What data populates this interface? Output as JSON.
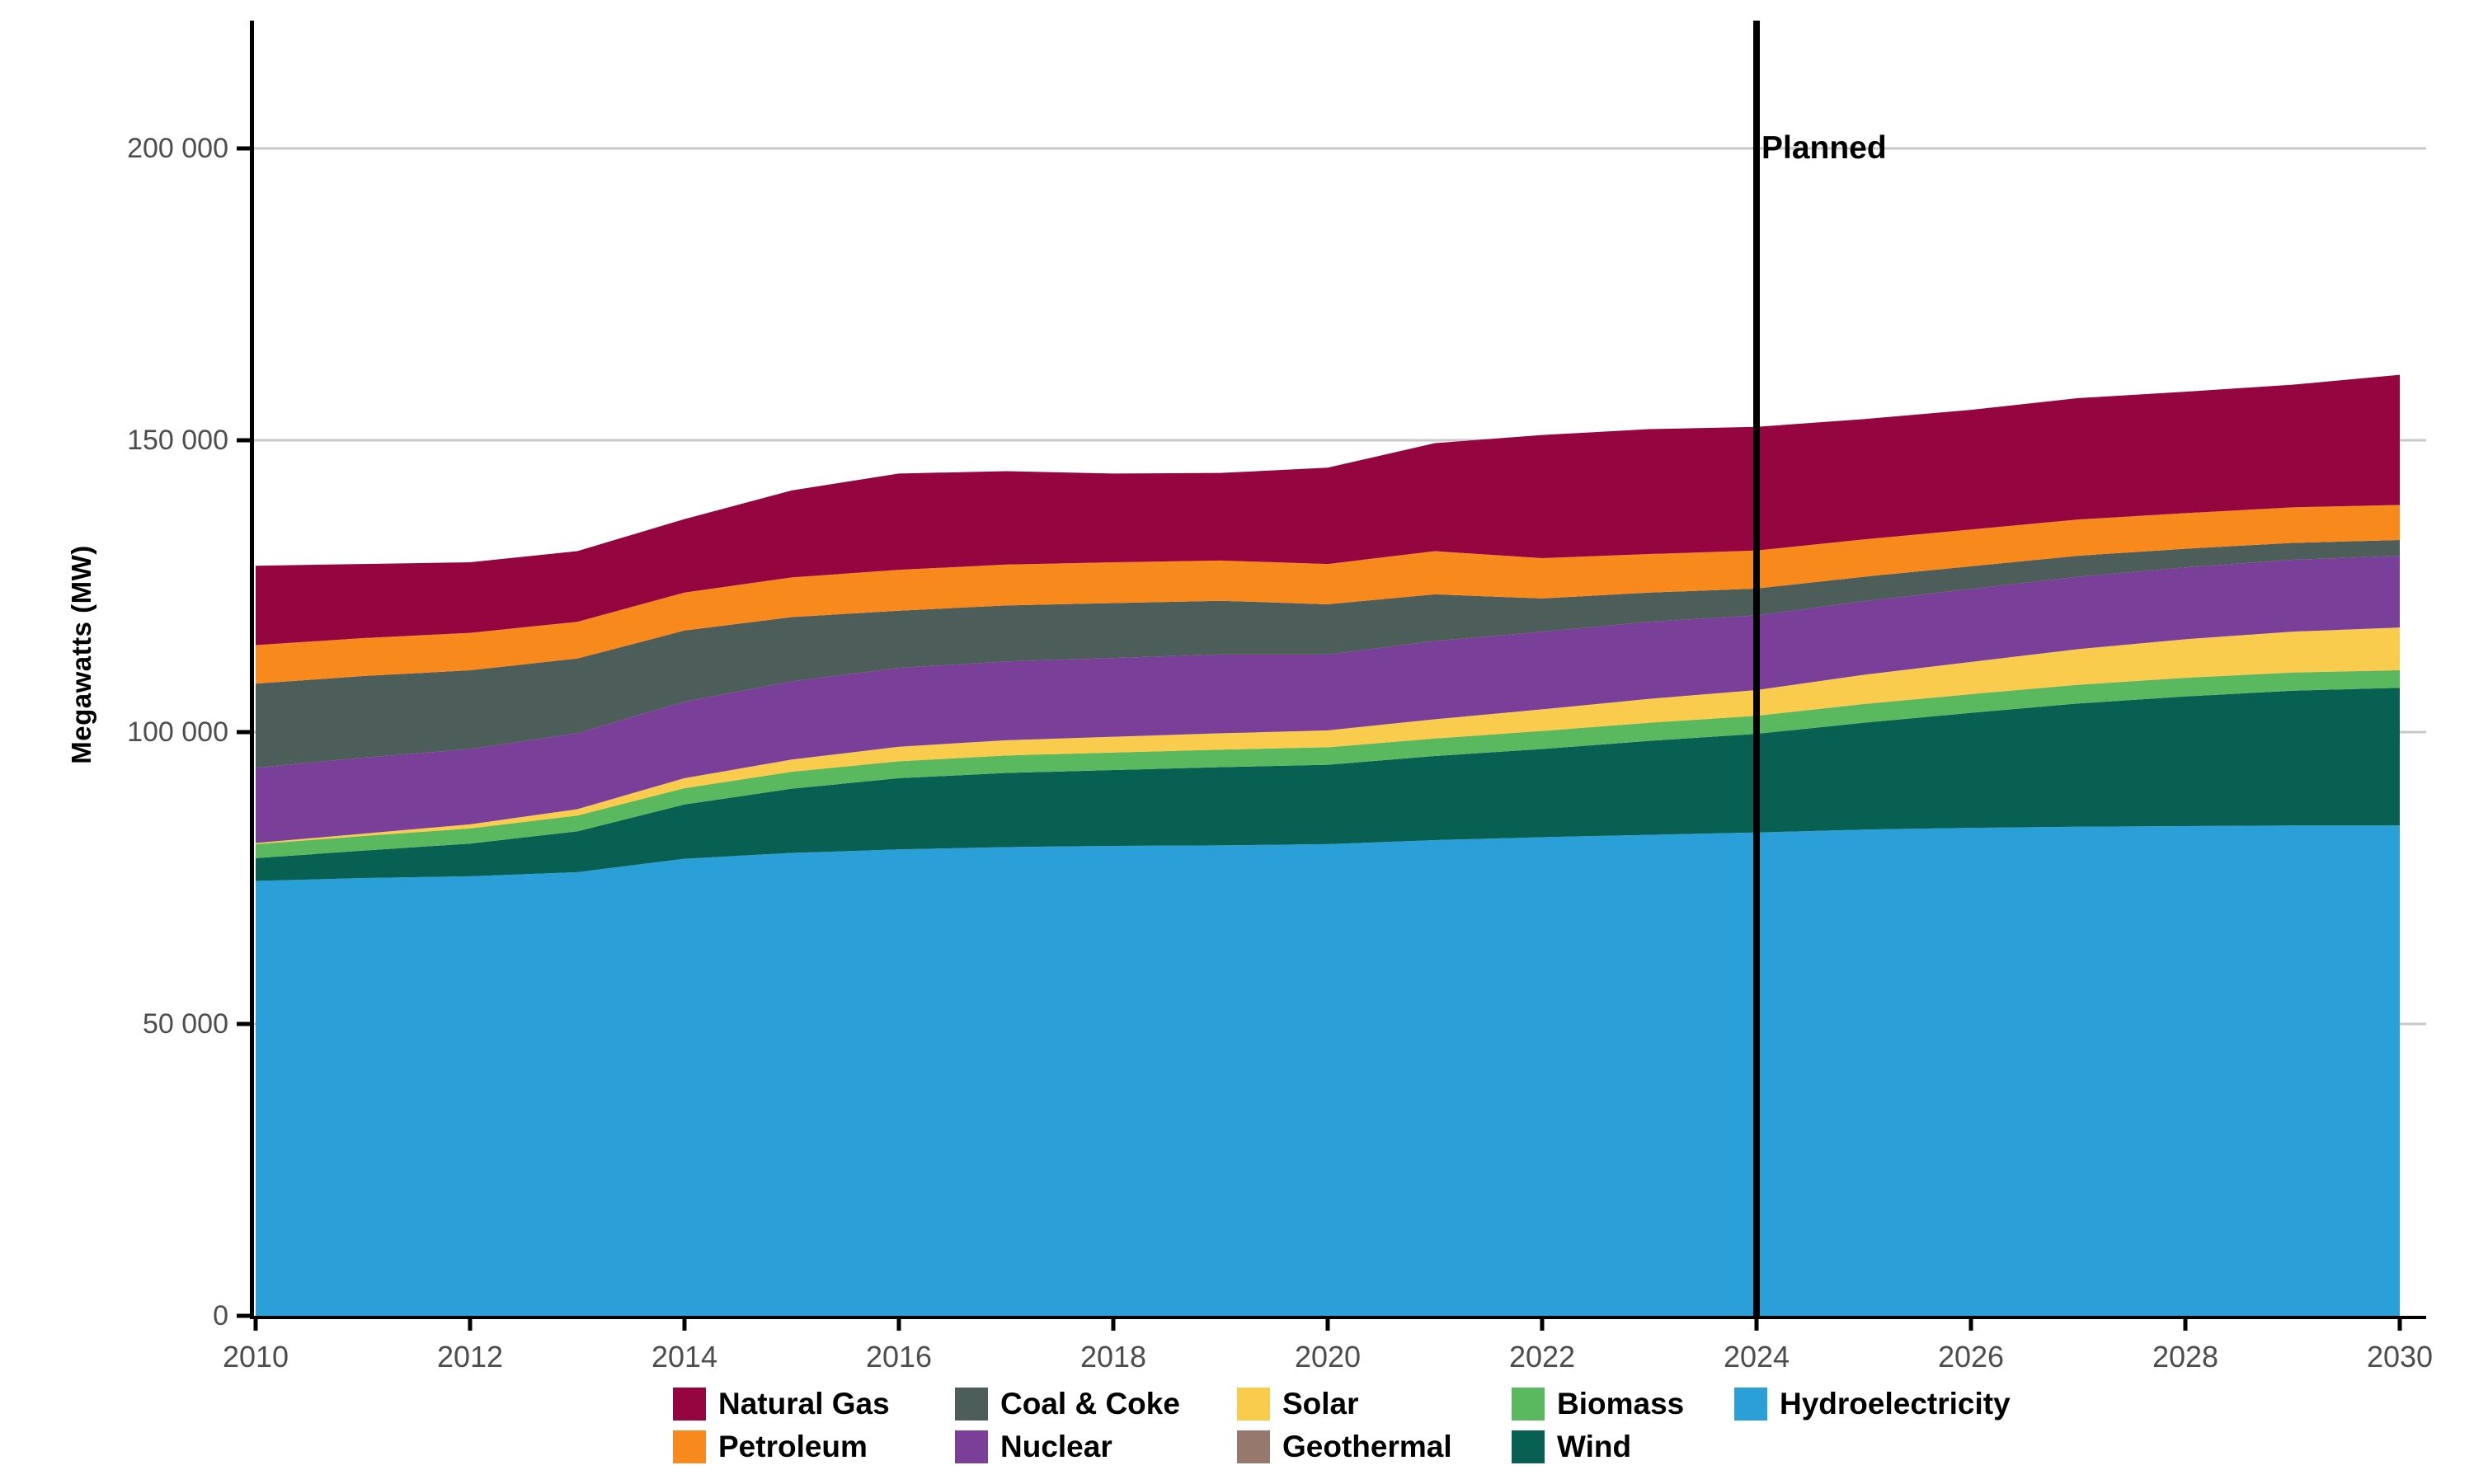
{
  "chart_data": {
    "type": "area",
    "stacked": true,
    "title": "",
    "xlabel": "",
    "ylabel": "Megawatts (MW)",
    "x": [
      2010,
      2011,
      2012,
      2013,
      2014,
      2015,
      2016,
      2017,
      2018,
      2019,
      2020,
      2021,
      2022,
      2023,
      2024,
      2025,
      2026,
      2027,
      2028,
      2029,
      2030
    ],
    "xticks": [
      2010,
      2012,
      2014,
      2016,
      2018,
      2020,
      2022,
      2024,
      2026,
      2028,
      2030
    ],
    "xtick_labels": [
      "2010",
      "2012",
      "2014",
      "2016",
      "2018",
      "2020",
      "2022",
      "2024",
      "2026",
      "2028",
      "2030"
    ],
    "yticks": [
      0,
      50000,
      100000,
      150000,
      200000
    ],
    "ytick_labels": [
      "0",
      "50 000",
      "100 000",
      "150 000",
      "200 000"
    ],
    "ylim": [
      0,
      222000
    ],
    "x_range": [
      2010,
      2030
    ],
    "grid": "horizontal",
    "legend_position": "bottom",
    "gridline_color": "#C9C9C9",
    "axis_color": "#000000",
    "tick_label_color": "#4D4D4D",
    "annotation": {
      "label": "Planned",
      "x": 2024,
      "line_color": "#000000"
    },
    "series": [
      {
        "name": "Hydroelectricity",
        "color": "#2A9FD8",
        "values": [
          74500,
          75000,
          75300,
          76000,
          78300,
          79300,
          79900,
          80300,
          80500,
          80600,
          80800,
          81500,
          82000,
          82400,
          82800,
          83300,
          83600,
          83800,
          83900,
          84000,
          84000
        ]
      },
      {
        "name": "Wind",
        "color": "#076051",
        "values": [
          3900,
          4700,
          5600,
          7000,
          9300,
          11000,
          12200,
          12700,
          13000,
          13400,
          13600,
          14400,
          15100,
          16100,
          16900,
          18300,
          19700,
          21100,
          22200,
          23100,
          23600
        ]
      },
      {
        "name": "Biomass",
        "color": "#5AB95F",
        "values": [
          2400,
          2500,
          2600,
          2700,
          2800,
          2900,
          2900,
          3000,
          3000,
          3000,
          3000,
          3000,
          3100,
          3100,
          3100,
          3200,
          3200,
          3200,
          3200,
          3100,
          3000
        ]
      },
      {
        "name": "Geothermal",
        "color": "#97786D",
        "values": [
          0,
          0,
          0,
          0,
          0,
          0,
          0,
          0,
          0,
          0,
          0,
          0,
          0,
          0,
          0,
          15,
          15,
          15,
          15,
          15,
          15
        ]
      },
      {
        "name": "Solar",
        "color": "#FACC4D",
        "values": [
          200,
          400,
          700,
          1100,
          1700,
          2100,
          2500,
          2600,
          2700,
          2800,
          2900,
          3300,
          3700,
          4100,
          4400,
          5000,
          5500,
          6100,
          6600,
          7000,
          7300
        ]
      },
      {
        "name": "Nuclear",
        "color": "#7A3F98",
        "values": [
          12900,
          13000,
          12900,
          13000,
          13100,
          13400,
          13500,
          13500,
          13500,
          13500,
          13000,
          13400,
          13300,
          13200,
          12800,
          12600,
          12500,
          12400,
          12300,
          12300,
          12300
        ]
      },
      {
        "name": "Coal & Coke",
        "color": "#4D5D59",
        "values": [
          14400,
          14000,
          13500,
          12800,
          12200,
          11000,
          9800,
          9600,
          9400,
          9200,
          8600,
          8000,
          5700,
          5000,
          4600,
          4200,
          3900,
          3600,
          3200,
          2900,
          2700
        ]
      },
      {
        "name": "Petroleum",
        "color": "#F8891D",
        "values": [
          6600,
          6500,
          6400,
          6300,
          6500,
          6800,
          7000,
          7000,
          7000,
          6900,
          6900,
          7400,
          6900,
          6600,
          6500,
          6400,
          6300,
          6200,
          6100,
          6100,
          6000
        ]
      },
      {
        "name": "Natural Gas",
        "color": "#95053F",
        "values": [
          13600,
          12700,
          12100,
          12100,
          12600,
          14900,
          16500,
          16000,
          15200,
          15000,
          16500,
          18500,
          21100,
          21400,
          21200,
          20600,
          20500,
          20800,
          20800,
          21000,
          22300
        ]
      }
    ],
    "legend_row_major_order": [
      "Natural Gas",
      "Coal & Coke",
      "Solar",
      "Biomass",
      "Hydroelectricity",
      "Petroleum",
      "Nuclear",
      "Geothermal",
      "Wind"
    ]
  }
}
